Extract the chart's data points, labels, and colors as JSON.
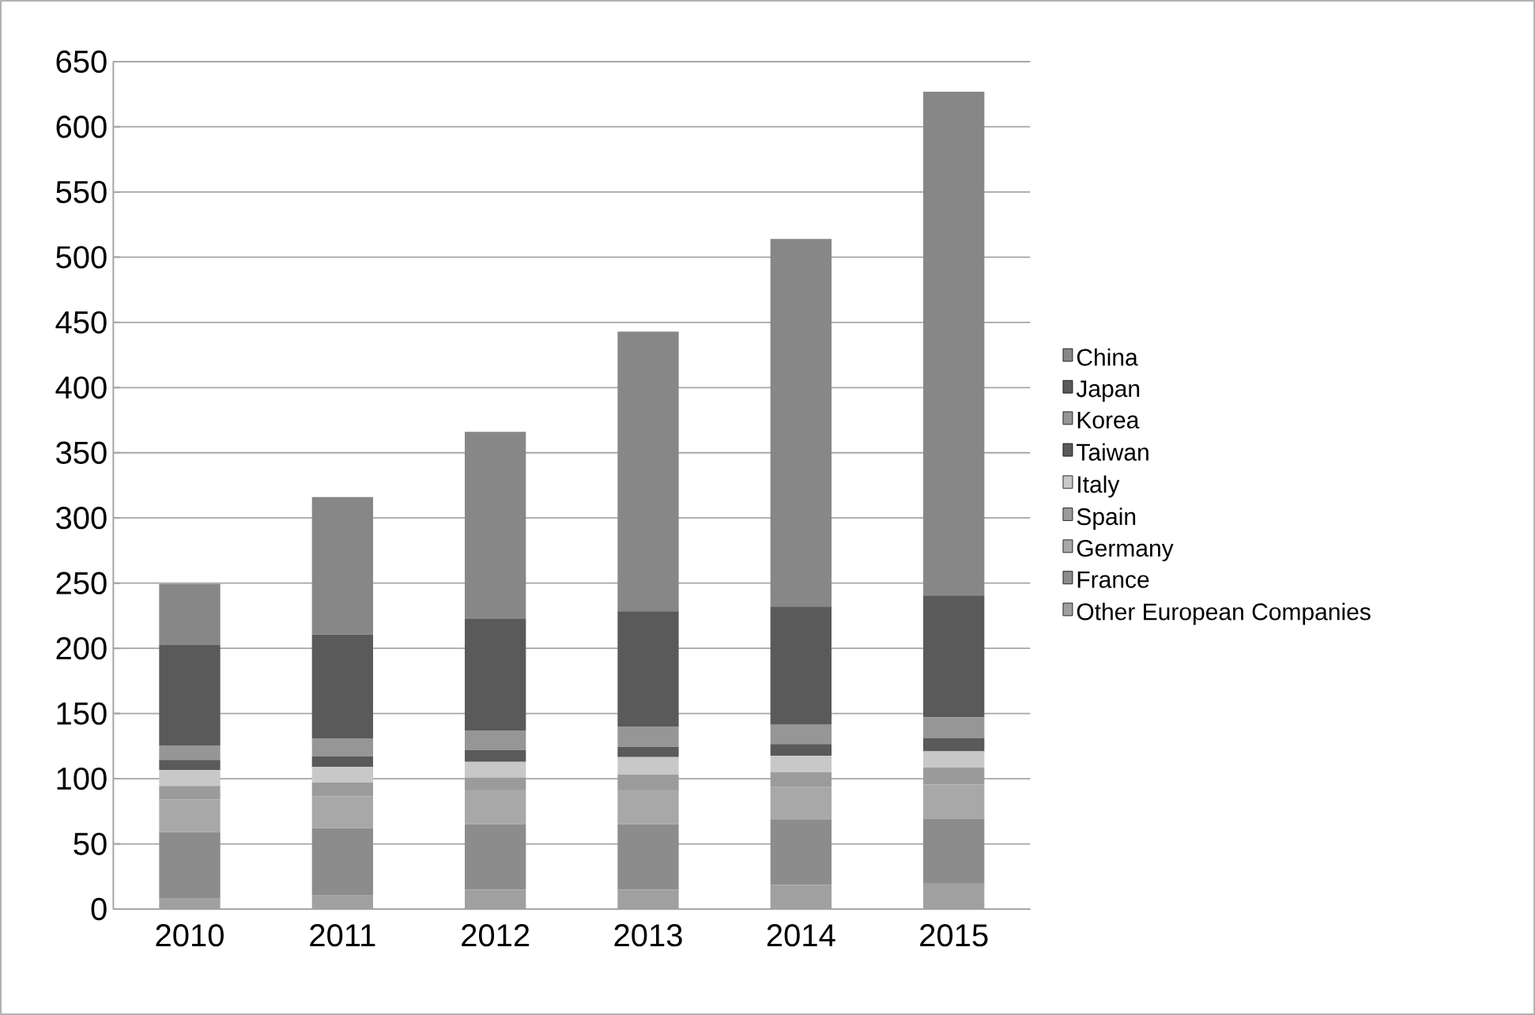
{
  "chart_data": {
    "type": "bar",
    "stacked": true,
    "categories": [
      "2010",
      "2011",
      "2012",
      "2013",
      "2014",
      "2015"
    ],
    "ylim": [
      0,
      650
    ],
    "yticks": [
      0,
      50,
      100,
      150,
      200,
      250,
      300,
      350,
      400,
      450,
      500,
      550,
      600,
      650
    ],
    "grid": "y",
    "legend": "right",
    "series": [
      {
        "name": "Other European Companies",
        "color": "#a0a0a0",
        "values": [
          8,
          10.5,
          15,
          15,
          18.5,
          20
        ]
      },
      {
        "name": "France",
        "color": "#8c8c8c",
        "values": [
          51,
          51.5,
          50,
          50,
          50,
          49.5
        ]
      },
      {
        "name": "Germany",
        "color": "#a8a8a8",
        "values": [
          25,
          24.5,
          26.5,
          26.5,
          25,
          26
        ]
      },
      {
        "name": "Spain",
        "color": "#9b9b9b",
        "values": [
          10.5,
          10.5,
          9.5,
          11.5,
          11.5,
          13
        ]
      },
      {
        "name": "Italy",
        "color": "#c8c8c8",
        "values": [
          12,
          12,
          12,
          13.5,
          12.5,
          12.5
        ]
      },
      {
        "name": "Taiwan",
        "color": "#5a5a5a",
        "values": [
          8,
          8,
          9,
          8,
          9,
          10
        ]
      },
      {
        "name": "Korea",
        "color": "#969696",
        "values": [
          11,
          14,
          15,
          15.5,
          15,
          16
        ]
      },
      {
        "name": "Japan",
        "color": "#5a5a5a",
        "values": [
          77,
          79.5,
          85.5,
          88.5,
          90.5,
          93.5
        ]
      },
      {
        "name": "China",
        "color": "#878787",
        "values": [
          47,
          105.5,
          143.5,
          214.5,
          282,
          386.5
        ]
      }
    ]
  }
}
